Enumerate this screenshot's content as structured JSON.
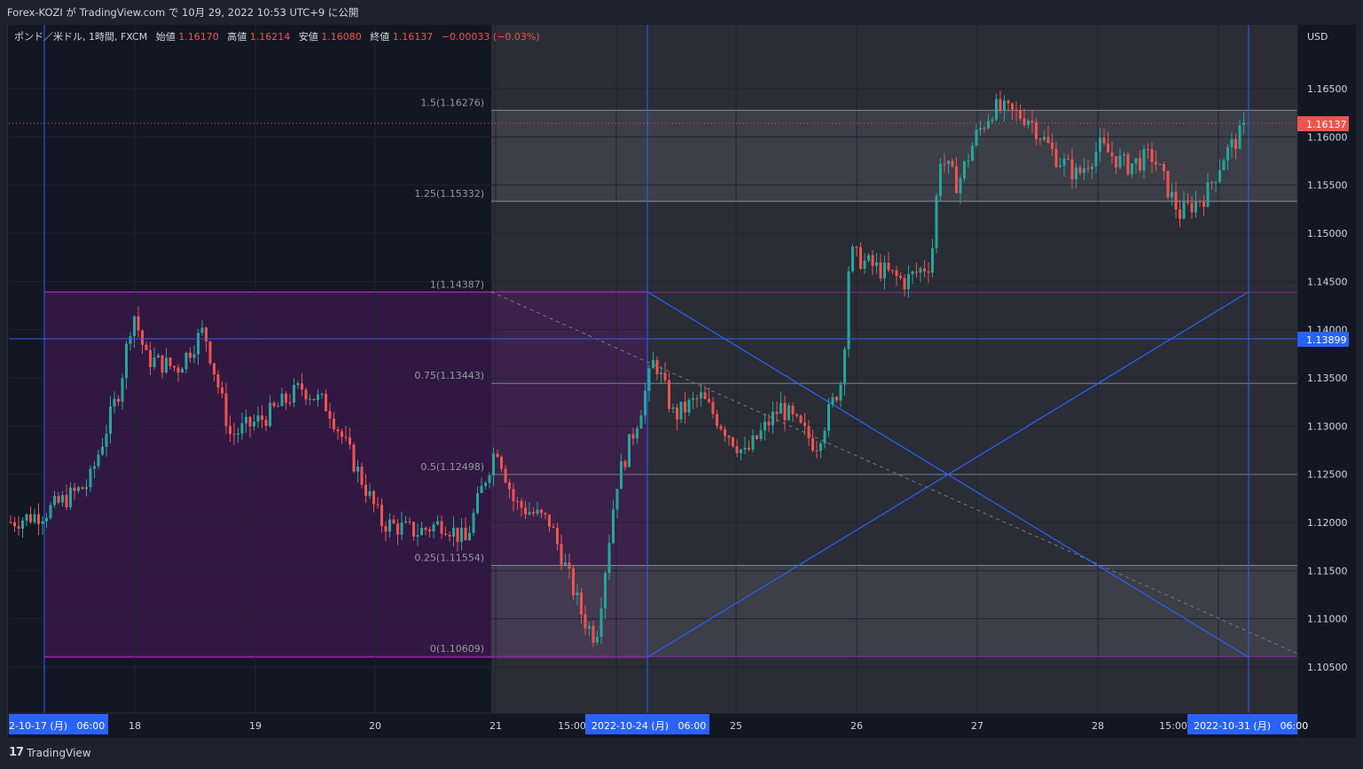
{
  "header": {
    "publish_line": "Forex-KOZI が TradingView.com で 10月 29, 2022 10:53 UTC+9 に公開"
  },
  "legend": {
    "symbol": "ポンド／米ドル, 1時間, FXCM",
    "open_label": "始値",
    "open_value": "1.16170",
    "high_label": "高値",
    "high_value": "1.16214",
    "low_label": "安値",
    "low_value": "1.16080",
    "close_label": "終値",
    "close_value": "1.16137",
    "change": "−0.00033 (−0.03%)"
  },
  "price_axis": {
    "currency": "USD",
    "ticks": [
      "1.16500",
      "1.16000",
      "1.15500",
      "1.15000",
      "1.14500",
      "1.14000",
      "1.13500",
      "1.13000",
      "1.12500",
      "1.12000",
      "1.11500",
      "1.11000",
      "1.10500"
    ],
    "last_price_badge": "1.16137",
    "crosshair_price_badge": "1.13899"
  },
  "time_axis": {
    "ticks": [
      "18",
      "19",
      "20",
      "21",
      "15:00",
      "25",
      "26",
      "27",
      "28",
      "15:00"
    ],
    "badge_left": "2-10-17 (月)   06:00",
    "badge_mid": "2022-10-24 (月)   06:00",
    "badge_right": "2022-10-31 (月)   06:00"
  },
  "fib_levels": [
    {
      "label": "1.5(1.16276)",
      "price": 1.16276
    },
    {
      "label": "1.25(1.15332)",
      "price": 1.15332
    },
    {
      "label": "1(1.14387)",
      "price": 1.14387
    },
    {
      "label": "0.75(1.13443)",
      "price": 1.13443
    },
    {
      "label": "0.5(1.12498)",
      "price": 1.12498
    },
    {
      "label": "0.25(1.11554)",
      "price": 1.11554
    },
    {
      "label": "0(1.10609)",
      "price": 1.10609
    }
  ],
  "colors": {
    "up": "#26a69a",
    "down": "#ef5350",
    "crosshair": "#2962ff",
    "purple_zone": "#9c27b0",
    "fib_zone": "#b2b5be",
    "background": "#131722"
  },
  "footer": {
    "brand": "TradingView"
  }
}
